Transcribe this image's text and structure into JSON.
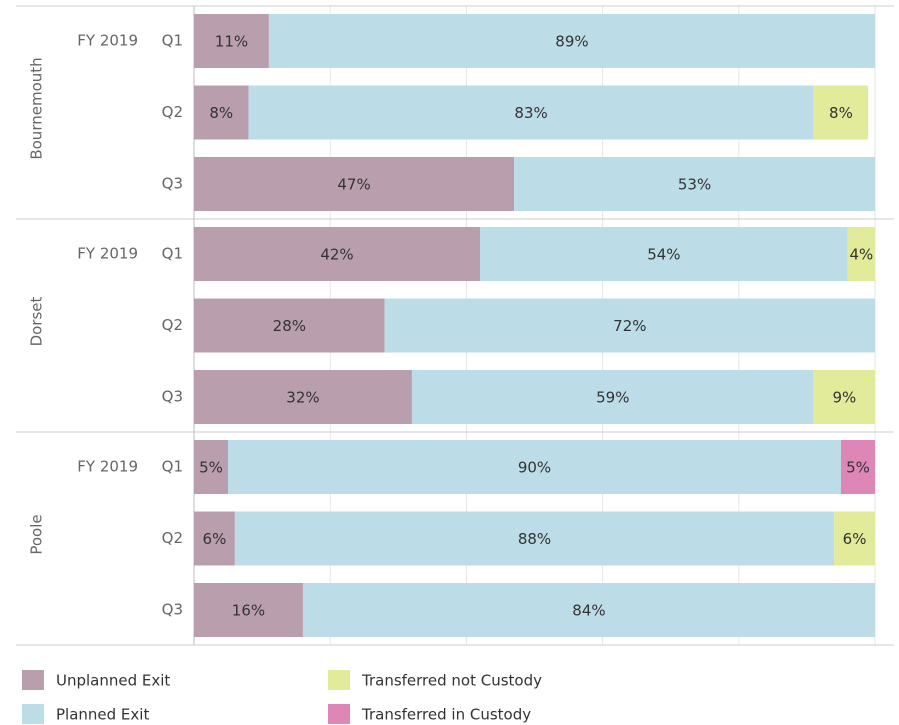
{
  "chart_data": {
    "type": "stacked-bar-horizontal",
    "groups": [
      {
        "name": "Bournemouth",
        "label": "FY 2019"
      },
      {
        "name": "Dorset",
        "label": "FY 2019"
      },
      {
        "name": "Poole",
        "label": "FY 2019"
      }
    ],
    "categories": [
      "Q1",
      "Q2",
      "Q3",
      "Q1",
      "Q2",
      "Q3",
      "Q1",
      "Q2",
      "Q3"
    ],
    "series": [
      {
        "name": "Unplanned Exit",
        "color": "#b99fad",
        "values": [
          11,
          8,
          47,
          42,
          28,
          32,
          5,
          6,
          16
        ],
        "value_labels": [
          "11%",
          "8%",
          "47%",
          "42%",
          "28%",
          "32%",
          "5%",
          "6%",
          "16%"
        ]
      },
      {
        "name": "Planned Exit",
        "color": "#bcdce7",
        "values": [
          89,
          83,
          53,
          54,
          72,
          59,
          90,
          88,
          84
        ],
        "value_labels": [
          "89%",
          "83%",
          "53%",
          "54%",
          "72%",
          "59%",
          "90%",
          "88%",
          "84%"
        ]
      },
      {
        "name": "Transferred not Custody",
        "color": "#e2eb9a",
        "values": [
          null,
          8,
          null,
          4,
          null,
          9,
          null,
          6,
          null
        ],
        "value_labels": [
          null,
          "8%",
          null,
          "4%",
          null,
          "9%",
          null,
          "6%",
          null
        ]
      },
      {
        "name": "Transferred in Custody",
        "color": "#de87b7",
        "values": [
          null,
          null,
          null,
          null,
          null,
          null,
          5,
          null,
          null
        ],
        "value_labels": [
          null,
          null,
          null,
          null,
          null,
          null,
          "5%",
          null,
          null
        ]
      }
    ],
    "xlim": [
      0,
      100
    ],
    "xticks": [
      0,
      20,
      40,
      60,
      80,
      100
    ],
    "grid": true
  }
}
